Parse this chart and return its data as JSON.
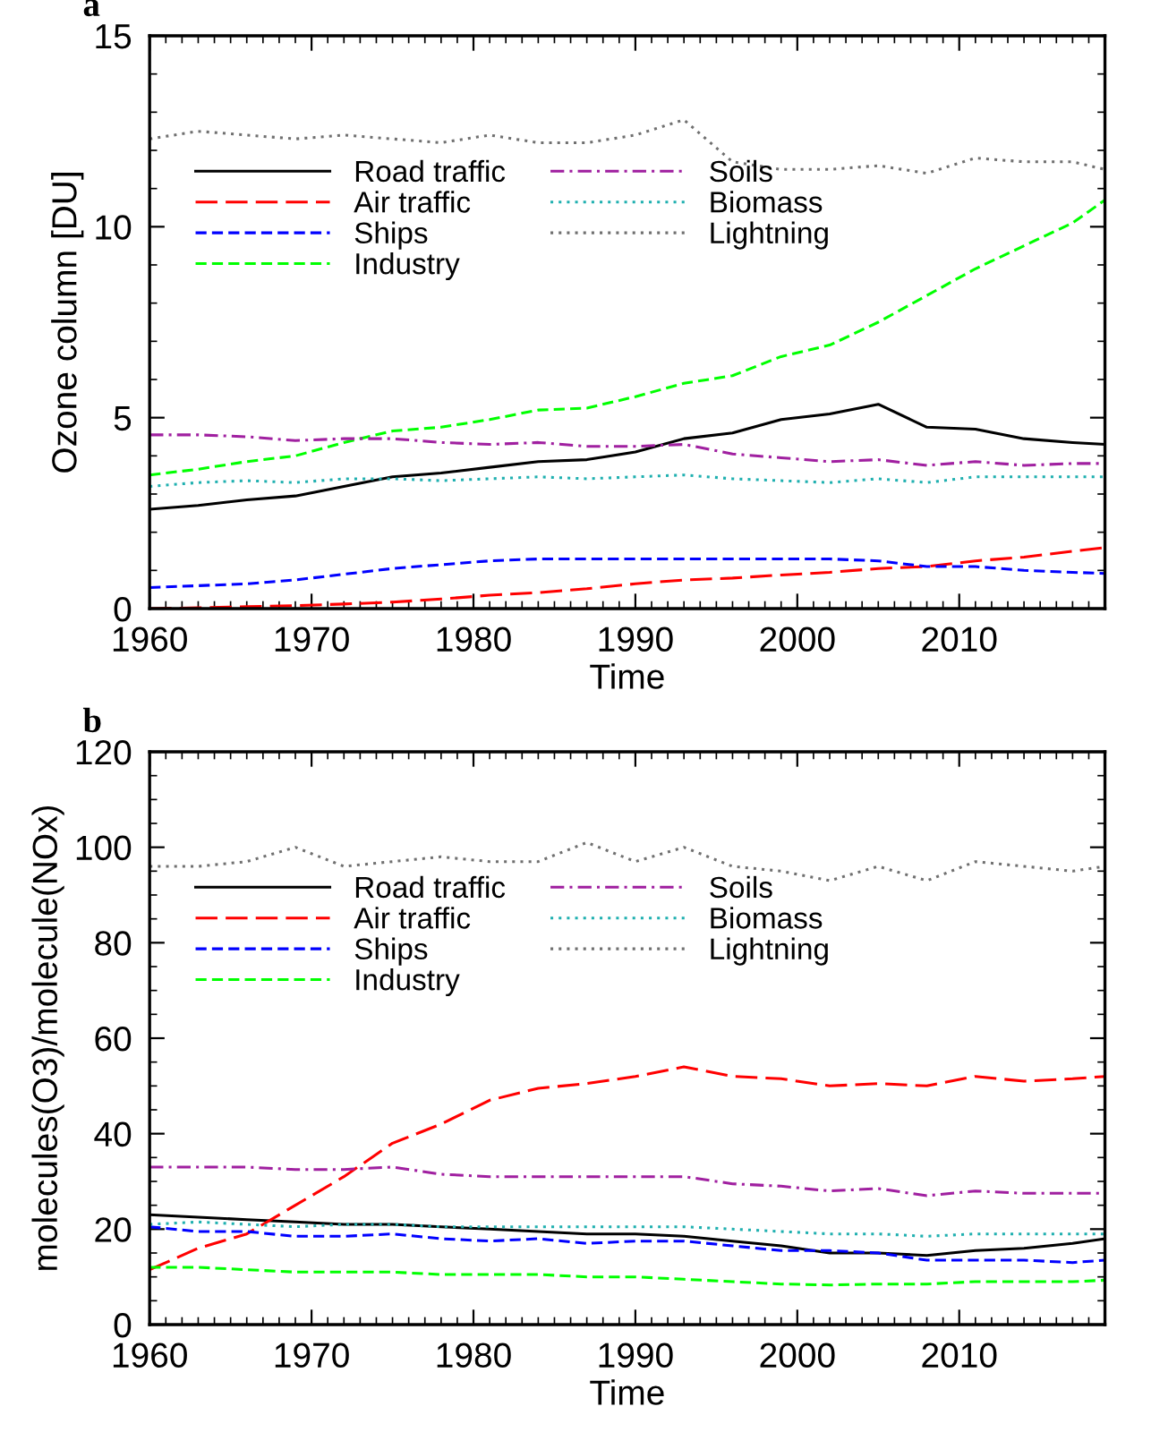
{
  "chart_data": [
    {
      "type": "line",
      "title": "a",
      "xlabel": "Time",
      "ylabel": "Ozone column [DU]",
      "xlim": [
        1960,
        2019
      ],
      "xticks": [
        1960,
        1970,
        1980,
        1990,
        2000,
        2010
      ],
      "ylim": [
        0,
        15
      ],
      "yticks": [
        0,
        5,
        10,
        15
      ],
      "grid": false,
      "legend": "top left",
      "x": [
        1960,
        1963,
        1966,
        1969,
        1972,
        1975,
        1978,
        1981,
        1984,
        1987,
        1990,
        1993,
        1996,
        1999,
        2002,
        2005,
        2008,
        2011,
        2014,
        2017,
        2019
      ],
      "series": [
        {
          "name": "Road traffic",
          "color": "#000000",
          "line_style": "solid",
          "values": [
            2.6,
            2.7,
            2.85,
            2.95,
            3.2,
            3.45,
            3.55,
            3.7,
            3.85,
            3.9,
            4.1,
            4.45,
            4.6,
            4.95,
            5.1,
            5.35,
            4.75,
            4.7,
            4.45,
            4.35,
            4.3
          ]
        },
        {
          "name": "Air traffic",
          "color": "#ff0000",
          "line_style": "longdash",
          "values": [
            0,
            0.02,
            0.05,
            0.08,
            0.12,
            0.17,
            0.25,
            0.35,
            0.42,
            0.52,
            0.65,
            0.75,
            0.8,
            0.88,
            0.95,
            1.05,
            1.1,
            1.25,
            1.35,
            1.5,
            1.6
          ]
        },
        {
          "name": "Ships",
          "color": "#0000ff",
          "line_style": "dashed",
          "values": [
            0.55,
            0.6,
            0.65,
            0.75,
            0.9,
            1.05,
            1.15,
            1.25,
            1.3,
            1.3,
            1.3,
            1.3,
            1.3,
            1.3,
            1.3,
            1.25,
            1.1,
            1.1,
            1.0,
            0.95,
            0.92
          ]
        },
        {
          "name": "Industry",
          "color": "#00ff00",
          "line_style": "dashed",
          "values": [
            3.5,
            3.65,
            3.85,
            4.0,
            4.35,
            4.65,
            4.75,
            4.95,
            5.2,
            5.25,
            5.55,
            5.9,
            6.1,
            6.6,
            6.9,
            7.5,
            8.2,
            8.9,
            9.5,
            10.1,
            10.7
          ]
        },
        {
          "name": "Soils",
          "color": "#a020a0",
          "line_style": "dashdot",
          "values": [
            4.55,
            4.55,
            4.5,
            4.4,
            4.45,
            4.45,
            4.35,
            4.3,
            4.35,
            4.25,
            4.25,
            4.3,
            4.05,
            3.95,
            3.85,
            3.9,
            3.75,
            3.85,
            3.75,
            3.8,
            3.8
          ]
        },
        {
          "name": "Biomass",
          "color": "#20b0b0",
          "line_style": "dotted",
          "values": [
            3.2,
            3.3,
            3.35,
            3.3,
            3.4,
            3.4,
            3.35,
            3.4,
            3.45,
            3.4,
            3.45,
            3.5,
            3.4,
            3.35,
            3.3,
            3.4,
            3.3,
            3.45,
            3.45,
            3.45,
            3.45
          ]
        },
        {
          "name": "Lightning",
          "color": "#707070",
          "line_style": "dotted",
          "values": [
            12.3,
            12.5,
            12.4,
            12.3,
            12.4,
            12.3,
            12.2,
            12.4,
            12.2,
            12.2,
            12.4,
            12.8,
            11.7,
            11.5,
            11.5,
            11.6,
            11.4,
            11.8,
            11.7,
            11.7,
            11.5
          ]
        }
      ]
    },
    {
      "type": "line",
      "title": "b",
      "xlabel": "Time",
      "ylabel": "molecules(O3)/molecule(NOx)",
      "xlim": [
        1960,
        2019
      ],
      "xticks": [
        1960,
        1970,
        1980,
        1990,
        2000,
        2010
      ],
      "ylim": [
        0,
        120
      ],
      "yticks": [
        0,
        20,
        40,
        60,
        80,
        100,
        120
      ],
      "grid": false,
      "legend": "top left",
      "x": [
        1960,
        1963,
        1966,
        1969,
        1972,
        1975,
        1978,
        1981,
        1984,
        1987,
        1990,
        1993,
        1996,
        1999,
        2002,
        2005,
        2008,
        2011,
        2014,
        2017,
        2019
      ],
      "series": [
        {
          "name": "Road traffic",
          "color": "#000000",
          "line_style": "solid",
          "values": [
            23,
            22.5,
            22,
            21.5,
            21,
            21,
            20.5,
            20,
            19.5,
            19,
            19,
            18.5,
            17.5,
            16.5,
            15,
            15,
            14.5,
            15.5,
            16,
            17,
            18
          ]
        },
        {
          "name": "Air traffic",
          "color": "#ff0000",
          "line_style": "longdash",
          "values": [
            11.5,
            16,
            19,
            25,
            31,
            38,
            42,
            47,
            49.5,
            50.5,
            52,
            54,
            52,
            51.5,
            50,
            50.5,
            50,
            52,
            51,
            51.5,
            52
          ]
        },
        {
          "name": "Ships",
          "color": "#0000ff",
          "line_style": "dashed",
          "values": [
            20.5,
            19.5,
            19.5,
            18.5,
            18.5,
            19,
            18,
            17.5,
            18,
            17,
            17.5,
            17.5,
            16.5,
            15.5,
            15.5,
            15,
            13.5,
            13.5,
            13.5,
            13,
            13.5
          ]
        },
        {
          "name": "Industry",
          "color": "#00ff00",
          "line_style": "dashed",
          "values": [
            12,
            12,
            11.5,
            11,
            11,
            11,
            10.5,
            10.5,
            10.5,
            10,
            10,
            9.5,
            9,
            8.5,
            8.3,
            8.5,
            8.5,
            9,
            9,
            9,
            9.3
          ]
        },
        {
          "name": "Soils",
          "color": "#a020a0",
          "line_style": "dashdot",
          "values": [
            33,
            33,
            33,
            32.5,
            32.5,
            33,
            31.5,
            31,
            31,
            31,
            31,
            31,
            29.5,
            29,
            28,
            28.5,
            27,
            28,
            27.5,
            27.5,
            27.5
          ]
        },
        {
          "name": "Biomass",
          "color": "#20b0b0",
          "line_style": "dotted",
          "values": [
            21,
            21.5,
            21,
            20.5,
            21,
            21,
            20.5,
            20.5,
            20.5,
            20.5,
            20.5,
            20.5,
            20,
            19.5,
            19,
            19,
            18.5,
            19,
            19,
            19,
            19
          ]
        },
        {
          "name": "Lightning",
          "color": "#707070",
          "line_style": "dotted",
          "values": [
            96,
            96,
            97,
            100,
            96,
            97,
            98,
            97,
            97,
            101,
            97,
            100,
            96,
            95,
            93,
            96,
            93,
            97,
            96,
            95,
            96
          ]
        }
      ]
    }
  ]
}
